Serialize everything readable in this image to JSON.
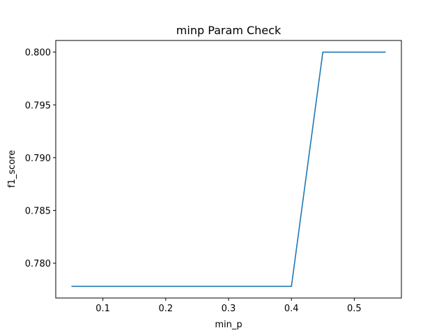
{
  "chart_data": {
    "type": "line",
    "title": "minp Param Check",
    "xlabel": "min_p",
    "ylabel": "f1_score",
    "x": [
      0.05,
      0.1,
      0.15,
      0.2,
      0.25,
      0.3,
      0.35,
      0.4,
      0.45,
      0.5,
      0.55
    ],
    "series": [
      {
        "values": [
          0.7778,
          0.7778,
          0.7778,
          0.7778,
          0.7778,
          0.7778,
          0.7778,
          0.7778,
          0.8,
          0.8,
          0.8
        ],
        "color": "#1f77b4"
      }
    ],
    "xlim": [
      0.025,
      0.575
    ],
    "ylim": [
      0.7767,
      0.8011
    ],
    "xticks": [
      0.1,
      0.2,
      0.3,
      0.4,
      0.5
    ],
    "xtick_labels": [
      "0.1",
      "0.2",
      "0.3",
      "0.4",
      "0.5"
    ],
    "yticks": [
      0.78,
      0.785,
      0.79,
      0.795,
      0.8
    ],
    "ytick_labels": [
      "0.780",
      "0.785",
      "0.790",
      "0.795",
      "0.800"
    ],
    "grid": false,
    "legend": false
  }
}
